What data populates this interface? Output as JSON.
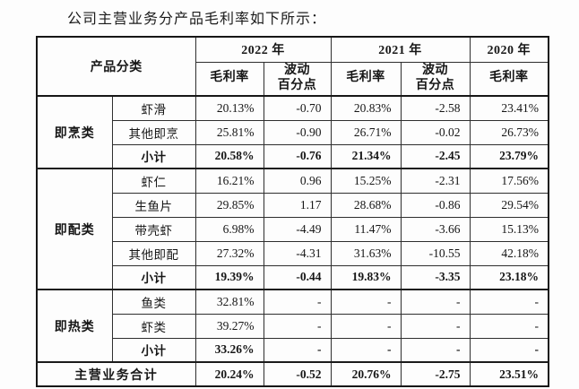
{
  "title": "公司主营业务分产品毛利率如下所示：",
  "table": {
    "header": {
      "product_category": "产品分类",
      "y2022": "2022 年",
      "y2021": "2021 年",
      "y2020": "2020 年",
      "margin": "毛利率",
      "fluct": "波动\n百分点"
    },
    "groups": [
      {
        "category": "即烹类",
        "rows": [
          {
            "product": "虾滑",
            "cells": [
              "20.13%",
              "-0.70",
              "20.83%",
              "-2.58",
              "23.41%"
            ],
            "bold": false
          },
          {
            "product": "其他即烹",
            "cells": [
              "25.81%",
              "-0.90",
              "26.71%",
              "-0.02",
              "26.73%"
            ],
            "bold": false
          },
          {
            "product": "小计",
            "cells": [
              "20.58%",
              "-0.76",
              "21.34%",
              "-2.45",
              "23.79%"
            ],
            "bold": true
          }
        ]
      },
      {
        "category": "即配类",
        "rows": [
          {
            "product": "虾仁",
            "cells": [
              "16.21%",
              "0.96",
              "15.25%",
              "-2.31",
              "17.56%"
            ],
            "bold": false
          },
          {
            "product": "生鱼片",
            "cells": [
              "29.85%",
              "1.17",
              "28.68%",
              "-0.86",
              "29.54%"
            ],
            "bold": false
          },
          {
            "product": "带壳虾",
            "cells": [
              "6.98%",
              "-4.49",
              "11.47%",
              "-3.66",
              "15.13%"
            ],
            "bold": false
          },
          {
            "product": "其他即配",
            "cells": [
              "27.32%",
              "-4.31",
              "31.63%",
              "-10.55",
              "42.18%"
            ],
            "bold": false
          },
          {
            "product": "小计",
            "cells": [
              "19.39%",
              "-0.44",
              "19.83%",
              "-3.35",
              "23.18%"
            ],
            "bold": true
          }
        ]
      },
      {
        "category": "即热类",
        "rows": [
          {
            "product": "鱼类",
            "cells": [
              "32.81%",
              "-",
              "-",
              "-",
              "-"
            ],
            "bold": false
          },
          {
            "product": "虾类",
            "cells": [
              "39.27%",
              "-",
              "-",
              "-",
              "-"
            ],
            "bold": false
          },
          {
            "product": "小计",
            "cells": [
              "33.26%",
              "-",
              "-",
              "-",
              "-"
            ],
            "bold": true
          }
        ]
      }
    ],
    "total": {
      "label": "主营业务合计",
      "cells": [
        "20.24%",
        "-0.52",
        "20.76%",
        "-2.75",
        "23.51%"
      ]
    }
  }
}
